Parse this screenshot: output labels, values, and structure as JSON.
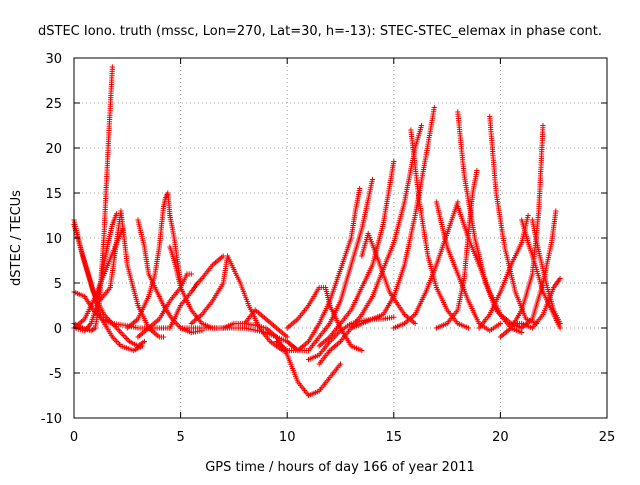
{
  "chart_data": {
    "type": "scatter",
    "title": "dSTEC Iono. truth (mssc, Lon=270, Lat=30, h=-13): STEC-STEC_elemax in phase cont.",
    "xlabel": "GPS time / hours of day 166 of year 2011",
    "ylabel": "dSTEC  / TECUs",
    "xlim": [
      0,
      25
    ],
    "ylim": [
      -10,
      30
    ],
    "x_ticks": [
      0,
      5,
      10,
      15,
      20,
      25
    ],
    "x_tick_labels": [
      "0",
      "5",
      "10",
      "15",
      "20",
      "25"
    ],
    "y_ticks": [
      -10,
      -5,
      0,
      5,
      10,
      15,
      20,
      25,
      30
    ],
    "y_tick_labels": [
      "-10",
      "-5",
      "0",
      "5",
      "10",
      "15",
      "20",
      "25",
      "30"
    ],
    "grid": true,
    "marker": "+",
    "series_color": "#ff0000",
    "arcs": [
      [
        [
          0.0,
          12.0
        ],
        [
          0.4,
          8.0
        ],
        [
          0.9,
          4.0
        ],
        [
          1.4,
          1.5
        ],
        [
          2.0,
          0.0
        ],
        [
          2.6,
          -1.5
        ],
        [
          3.0,
          -2.0
        ],
        [
          3.3,
          -1.5
        ]
      ],
      [
        [
          0.0,
          11.5
        ],
        [
          0.3,
          9.0
        ],
        [
          0.8,
          5.0
        ],
        [
          1.3,
          1.0
        ],
        [
          1.8,
          -1.0
        ],
        [
          2.2,
          -2.0
        ],
        [
          2.8,
          -2.5
        ],
        [
          3.2,
          -2.0
        ]
      ],
      [
        [
          0.0,
          4.0
        ],
        [
          0.5,
          3.5
        ],
        [
          0.9,
          2.0
        ],
        [
          1.3,
          1.0
        ],
        [
          1.8,
          0.5
        ],
        [
          2.4,
          0.3
        ],
        [
          3.0,
          0.0
        ],
        [
          3.6,
          0.0
        ],
        [
          4.5,
          0.0
        ]
      ],
      [
        [
          0.0,
          0.5
        ],
        [
          0.4,
          0.0
        ],
        [
          0.8,
          -0.3
        ],
        [
          1.0,
          0.0
        ],
        [
          1.2,
          3.0
        ],
        [
          1.4,
          10.0
        ],
        [
          1.6,
          20.0
        ],
        [
          1.8,
          29.0
        ]
      ],
      [
        [
          0.0,
          0.0
        ],
        [
          0.5,
          -0.3
        ],
        [
          0.8,
          0.5
        ],
        [
          1.0,
          2.0
        ],
        [
          1.2,
          4.5
        ],
        [
          1.4,
          7.0
        ],
        [
          1.6,
          9.5
        ],
        [
          1.8,
          11.5
        ],
        [
          2.0,
          12.7
        ]
      ],
      [
        [
          0.0,
          0.0
        ],
        [
          0.5,
          1.0
        ],
        [
          1.0,
          3.5
        ],
        [
          1.5,
          6.5
        ],
        [
          2.0,
          9.5
        ],
        [
          2.3,
          11.0
        ]
      ],
      [
        [
          1.2,
          3.0
        ],
        [
          1.7,
          4.5
        ],
        [
          2.2,
          13.0
        ],
        [
          2.5,
          7.0
        ],
        [
          3.0,
          2.5
        ],
        [
          3.5,
          0.0
        ],
        [
          4.0,
          -1.0
        ],
        [
          4.2,
          -1.0
        ]
      ],
      [
        [
          2.5,
          0.0
        ],
        [
          3.0,
          1.0
        ],
        [
          3.5,
          3.5
        ],
        [
          3.8,
          6.0
        ],
        [
          4.0,
          9.0
        ],
        [
          4.2,
          13.5
        ],
        [
          4.3,
          14.5
        ],
        [
          4.4,
          15.0
        ],
        [
          4.5,
          12.5
        ],
        [
          4.7,
          10.0
        ],
        [
          5.0,
          5.0
        ]
      ],
      [
        [
          3.0,
          12.0
        ],
        [
          3.3,
          9.0
        ],
        [
          3.5,
          6.0
        ],
        [
          3.8,
          4.5
        ],
        [
          4.2,
          2.5
        ],
        [
          4.6,
          1.0
        ],
        [
          5.0,
          0.0
        ],
        [
          5.5,
          -0.5
        ],
        [
          6.0,
          -0.3
        ]
      ],
      [
        [
          3.0,
          -1.0
        ],
        [
          3.5,
          0.0
        ],
        [
          4.0,
          1.0
        ],
        [
          4.5,
          3.0
        ],
        [
          5.0,
          4.5
        ],
        [
          5.3,
          6.0
        ],
        [
          5.5,
          6.0
        ]
      ],
      [
        [
          4.5,
          9.0
        ],
        [
          4.7,
          7.5
        ],
        [
          5.0,
          4.5
        ],
        [
          5.5,
          2.0
        ],
        [
          6.0,
          0.5
        ],
        [
          6.5,
          0.0
        ],
        [
          7.0,
          0.0
        ]
      ],
      [
        [
          4.5,
          0.0
        ],
        [
          5.0,
          2.5
        ],
        [
          5.5,
          4.0
        ],
        [
          5.8,
          5.0
        ],
        [
          6.0,
          5.5
        ],
        [
          6.5,
          7.0
        ],
        [
          7.0,
          8.0
        ]
      ],
      [
        [
          5.0,
          0.0
        ],
        [
          5.5,
          0.0
        ],
        [
          6.0,
          0.0
        ],
        [
          7.0,
          0.0
        ],
        [
          8.0,
          0.0
        ],
        [
          9.0,
          -0.5
        ],
        [
          10.0,
          -1.5
        ],
        [
          10.5,
          -2.5
        ]
      ],
      [
        [
          5.5,
          0.5
        ],
        [
          6.0,
          1.5
        ],
        [
          6.5,
          3.0
        ],
        [
          7.0,
          5.0
        ],
        [
          7.2,
          8.0
        ]
      ],
      [
        [
          7.2,
          8.0
        ],
        [
          7.8,
          5.0
        ],
        [
          8.2,
          2.5
        ],
        [
          8.7,
          0.0
        ],
        [
          9.2,
          -1.5
        ],
        [
          9.8,
          -2.5
        ],
        [
          10.2,
          -2.5
        ]
      ],
      [
        [
          8.0,
          0.5
        ],
        [
          8.5,
          2.0
        ],
        [
          9.0,
          1.0
        ],
        [
          9.5,
          0.0
        ],
        [
          10.0,
          -1.0
        ]
      ],
      [
        [
          7.0,
          0.0
        ],
        [
          7.5,
          0.5
        ],
        [
          8.0,
          0.5
        ],
        [
          8.5,
          0.3
        ],
        [
          9.0,
          0.0
        ],
        [
          9.5,
          -1.0
        ],
        [
          10.0,
          -3.0
        ],
        [
          10.5,
          -6.0
        ],
        [
          11.0,
          -7.5
        ],
        [
          11.5,
          -7.0
        ],
        [
          12.0,
          -5.5
        ],
        [
          12.5,
          -4.0
        ]
      ],
      [
        [
          9.5,
          -1.5
        ],
        [
          10.0,
          -2.5
        ],
        [
          10.5,
          -2.5
        ],
        [
          11.0,
          -1.5
        ],
        [
          11.5,
          0.5
        ],
        [
          12.0,
          3.0
        ],
        [
          12.5,
          6.5
        ],
        [
          13.0,
          10.0
        ],
        [
          13.2,
          13.0
        ],
        [
          13.4,
          15.5
        ]
      ],
      [
        [
          10.0,
          0.0
        ],
        [
          10.5,
          1.0
        ],
        [
          11.0,
          2.5
        ],
        [
          11.5,
          4.5
        ],
        [
          11.8,
          4.5
        ],
        [
          12.0,
          2.5
        ],
        [
          12.5,
          0.0
        ],
        [
          13.0,
          -2.0
        ],
        [
          13.5,
          -2.5
        ]
      ],
      [
        [
          10.0,
          -1.5
        ],
        [
          10.5,
          -2.5
        ],
        [
          11.0,
          -2.5
        ],
        [
          11.5,
          -1.0
        ],
        [
          12.0,
          0.5
        ],
        [
          12.5,
          3.0
        ],
        [
          13.0,
          7.0
        ],
        [
          13.5,
          11.0
        ],
        [
          14.0,
          16.5
        ]
      ],
      [
        [
          11.5,
          -2.0
        ],
        [
          12.0,
          -1.0
        ],
        [
          12.5,
          0.5
        ],
        [
          13.0,
          2.0
        ],
        [
          13.5,
          4.5
        ],
        [
          14.0,
          7.0
        ],
        [
          14.5,
          11.5
        ],
        [
          15.0,
          18.5
        ]
      ],
      [
        [
          11.5,
          -4.0
        ],
        [
          12.0,
          -2.5
        ],
        [
          12.5,
          -1.5
        ],
        [
          13.0,
          0.0
        ],
        [
          13.5,
          1.5
        ],
        [
          14.0,
          3.5
        ],
        [
          14.5,
          6.5
        ],
        [
          15.0,
          9.5
        ],
        [
          15.5,
          14.0
        ],
        [
          16.0,
          20.0
        ],
        [
          16.3,
          22.5
        ]
      ],
      [
        [
          11.0,
          -3.5
        ],
        [
          11.5,
          -3.0
        ],
        [
          12.0,
          -1.5
        ],
        [
          12.5,
          -0.3
        ],
        [
          13.0,
          0.5
        ],
        [
          13.5,
          0.8
        ],
        [
          14.0,
          1.0
        ],
        [
          14.5,
          1.0
        ],
        [
          15.0,
          1.2
        ]
      ],
      [
        [
          13.5,
          8.0
        ],
        [
          13.8,
          10.5
        ],
        [
          14.2,
          8.0
        ],
        [
          14.8,
          4.0
        ],
        [
          15.5,
          1.5
        ],
        [
          16.0,
          0.5
        ]
      ],
      [
        [
          13.0,
          0.0
        ],
        [
          13.5,
          0.5
        ],
        [
          14.0,
          1.0
        ],
        [
          14.5,
          1.5
        ],
        [
          15.0,
          3.5
        ],
        [
          15.5,
          7.0
        ],
        [
          16.0,
          12.5
        ],
        [
          16.5,
          19.0
        ],
        [
          16.9,
          24.5
        ]
      ],
      [
        [
          15.0,
          0.0
        ],
        [
          15.5,
          0.5
        ],
        [
          16.0,
          1.5
        ],
        [
          16.5,
          4.0
        ],
        [
          17.0,
          7.0
        ],
        [
          17.5,
          10.5
        ],
        [
          18.0,
          14.0
        ]
      ],
      [
        [
          15.8,
          22.0
        ],
        [
          16.2,
          14.0
        ],
        [
          16.6,
          8.0
        ],
        [
          17.0,
          4.5
        ],
        [
          17.5,
          2.0
        ],
        [
          18.0,
          0.5
        ],
        [
          18.5,
          0.0
        ]
      ],
      [
        [
          17.0,
          0.0
        ],
        [
          17.5,
          0.5
        ],
        [
          18.0,
          2.0
        ],
        [
          18.3,
          5.5
        ],
        [
          18.5,
          10.5
        ],
        [
          18.7,
          15.0
        ],
        [
          18.9,
          17.5
        ]
      ],
      [
        [
          18.0,
          24.0
        ],
        [
          18.3,
          17.0
        ],
        [
          18.8,
          10.0
        ],
        [
          19.3,
          5.0
        ],
        [
          19.8,
          2.0
        ],
        [
          20.5,
          0.0
        ],
        [
          21.0,
          -0.5
        ]
      ],
      [
        [
          18.0,
          13.5
        ],
        [
          18.5,
          10.0
        ],
        [
          19.0,
          7.0
        ],
        [
          19.5,
          4.0
        ],
        [
          20.0,
          1.5
        ],
        [
          20.5,
          0.5
        ],
        [
          21.0,
          0.0
        ]
      ],
      [
        [
          17.0,
          14.0
        ],
        [
          17.5,
          9.0
        ],
        [
          18.0,
          6.0
        ],
        [
          18.5,
          3.0
        ],
        [
          19.0,
          0.5
        ],
        [
          19.5,
          -0.3
        ],
        [
          20.0,
          0.5
        ]
      ],
      [
        [
          19.5,
          23.5
        ],
        [
          19.8,
          15.0
        ],
        [
          20.2,
          9.0
        ],
        [
          20.7,
          4.0
        ],
        [
          21.2,
          1.0
        ],
        [
          21.7,
          0.5
        ]
      ],
      [
        [
          19.0,
          0.0
        ],
        [
          19.5,
          1.5
        ],
        [
          20.0,
          4.0
        ],
        [
          20.5,
          7.0
        ],
        [
          21.0,
          9.5
        ],
        [
          21.3,
          12.5
        ]
      ],
      [
        [
          20.0,
          -1.0
        ],
        [
          20.5,
          0.0
        ],
        [
          21.0,
          2.0
        ],
        [
          21.5,
          6.0
        ],
        [
          21.8,
          13.0
        ],
        [
          22.0,
          22.5
        ]
      ],
      [
        [
          21.0,
          12.0
        ],
        [
          21.3,
          9.5
        ],
        [
          21.7,
          6.5
        ],
        [
          22.0,
          4.0
        ],
        [
          22.3,
          2.5
        ],
        [
          22.8,
          0.0
        ]
      ],
      [
        [
          20.5,
          0.5
        ],
        [
          21.0,
          0.5
        ],
        [
          21.5,
          0.0
        ],
        [
          22.0,
          1.5
        ],
        [
          22.5,
          4.5
        ],
        [
          22.8,
          5.5
        ]
      ],
      [
        [
          21.0,
          0.0
        ],
        [
          21.5,
          1.0
        ],
        [
          22.0,
          5.0
        ],
        [
          22.4,
          9.5
        ],
        [
          22.6,
          13.0
        ]
      ],
      [
        [
          21.5,
          12.0
        ],
        [
          21.8,
          8.5
        ],
        [
          22.2,
          4.5
        ],
        [
          22.5,
          2.0
        ],
        [
          22.8,
          0.5
        ]
      ]
    ]
  }
}
